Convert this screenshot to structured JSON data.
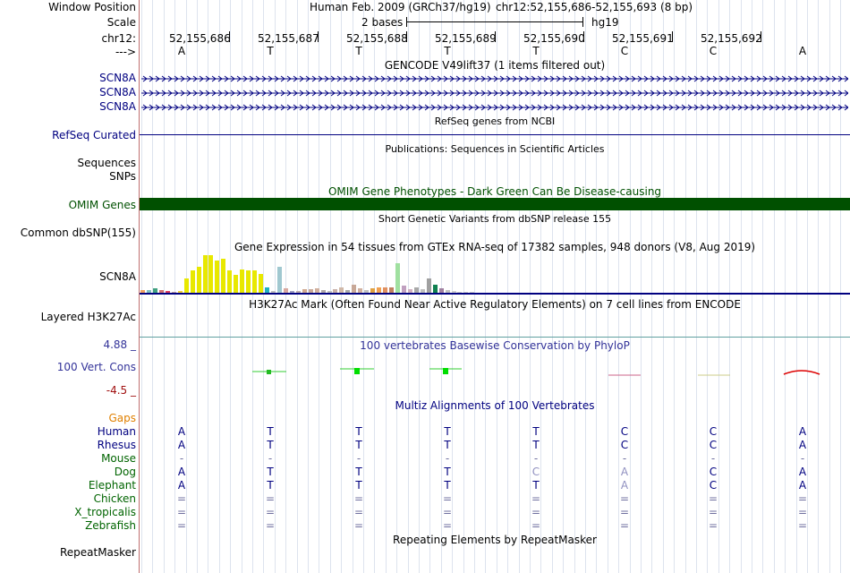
{
  "header": {
    "window_position_label": "Window Position",
    "assembly": "Human Feb. 2009 (GRCh37/hg19)",
    "coordinates": "chr12:52,155,686-52,155,693 (8 bp)",
    "scale_label": "Scale",
    "scale_text": "2 bases",
    "scale_assembly": "hg19",
    "chrom_label": "chr12:",
    "strand_label": "--->",
    "positions": [
      "52,155,686",
      "52,155,687",
      "52,155,688",
      "52,155,689",
      "52,155,690",
      "52,155,691",
      "52,155,692"
    ],
    "bases": [
      "A",
      "T",
      "T",
      "T",
      "T",
      "C",
      "C",
      "A"
    ]
  },
  "tracks": {
    "gencode_title": "GENCODE V49lift37 (1 items filtered out)",
    "gencode_genes": [
      "SCN8A",
      "SCN8A",
      "SCN8A"
    ],
    "refseq_title": "RefSeq genes from NCBI",
    "refseq_label": "RefSeq Curated",
    "publications_title": "Publications: Sequences in Scientific Articles",
    "sequences_label": "Sequences",
    "snps_label": "SNPs",
    "omim_title": "OMIM Gene Phenotypes - Dark Green Can Be Disease-causing",
    "omim_label": "OMIM Genes",
    "dbsnp_title": "Short Genetic Variants from dbSNP release 155",
    "dbsnp_label": "Common dbSNP(155)",
    "gtex_title": "Gene Expression in 54 tissues from GTEx RNA-seq of 17382 samples, 948 donors (V8, Aug 2019)",
    "gtex_label": "SCN8A",
    "h3k27ac_title": "H3K27Ac Mark (Often Found Near Active Regulatory Elements) on 7 cell lines from ENCODE",
    "h3k27ac_label": "Layered H3K27Ac",
    "cons_title": "100 vertebrates Basewise Conservation by PhyloP",
    "cons_label": "100 Vert. Cons",
    "cons_max": "4.88 _",
    "cons_min": "-4.5 _",
    "multiz_title": "Multiz Alignments of 100 Vertebrates",
    "repeat_title": "Repeating Elements by RepeatMasker",
    "repeat_label": "RepeatMasker"
  },
  "colors": {
    "navy": "#000080",
    "omim_green": "#005000",
    "cons_blue": "#333399",
    "cons_red": "#a01010",
    "gaps_orange": "#e08000",
    "species_green": "#006400"
  },
  "gtex_bars": [
    {
      "value": 0.06,
      "color": "#f0a060"
    },
    {
      "value": 0.08,
      "color": "#80c0c0"
    },
    {
      "value": 0.12,
      "color": "#40a080"
    },
    {
      "value": 0.08,
      "color": "#d07070"
    },
    {
      "value": 0.04,
      "color": "#e04060"
    },
    {
      "value": 0.03,
      "color": "#c0a0a0"
    },
    {
      "value": 0.05,
      "color": "#f0d040"
    },
    {
      "value": 0.38,
      "color": "#e8e800"
    },
    {
      "value": 0.58,
      "color": "#e8e800"
    },
    {
      "value": 0.68,
      "color": "#e8e800"
    },
    {
      "value": 0.98,
      "color": "#e8e800"
    },
    {
      "value": 0.98,
      "color": "#e8e800"
    },
    {
      "value": 0.84,
      "color": "#e8e800"
    },
    {
      "value": 0.88,
      "color": "#e8e800"
    },
    {
      "value": 0.58,
      "color": "#e8e800"
    },
    {
      "value": 0.46,
      "color": "#e8e800"
    },
    {
      "value": 0.6,
      "color": "#e8e800"
    },
    {
      "value": 0.58,
      "color": "#e8e800"
    },
    {
      "value": 0.58,
      "color": "#e8e800"
    },
    {
      "value": 0.48,
      "color": "#e8e800"
    },
    {
      "value": 0.14,
      "color": "#20b0c0"
    },
    {
      "value": 0.04,
      "color": "#c0c0c0"
    },
    {
      "value": 0.68,
      "color": "#a0c8d0"
    },
    {
      "value": 0.12,
      "color": "#d8a8a0"
    },
    {
      "value": 0.04,
      "color": "#a0a0c0"
    },
    {
      "value": 0.04,
      "color": "#c0b0b0"
    },
    {
      "value": 0.1,
      "color": "#d0a890"
    },
    {
      "value": 0.1,
      "color": "#c8a898"
    },
    {
      "value": 0.12,
      "color": "#d0b0a0"
    },
    {
      "value": 0.06,
      "color": "#b0a8a8"
    },
    {
      "value": 0.04,
      "color": "#c0c0c0"
    },
    {
      "value": 0.1,
      "color": "#c8b0a8"
    },
    {
      "value": 0.14,
      "color": "#d0b8a8"
    },
    {
      "value": 0.06,
      "color": "#a8a8a8"
    },
    {
      "value": 0.2,
      "color": "#c8a898"
    },
    {
      "value": 0.12,
      "color": "#d0b0a0"
    },
    {
      "value": 0.08,
      "color": "#c0c0c0"
    },
    {
      "value": 0.12,
      "color": "#e0a040"
    },
    {
      "value": 0.14,
      "color": "#f0a050"
    },
    {
      "value": 0.14,
      "color": "#e09060"
    },
    {
      "value": 0.14,
      "color": "#c08060"
    },
    {
      "value": 0.76,
      "color": "#a0e0a0"
    },
    {
      "value": 0.18,
      "color": "#c0a0c0"
    },
    {
      "value": 0.1,
      "color": "#d0b0c0"
    },
    {
      "value": 0.14,
      "color": "#a8a8a8"
    },
    {
      "value": 0.1,
      "color": "#c0c0c0"
    },
    {
      "value": 0.38,
      "color": "#a0a0a0"
    },
    {
      "value": 0.2,
      "color": "#108050"
    },
    {
      "value": 0.12,
      "color": "#a080a0"
    },
    {
      "value": 0.06,
      "color": "#c0c0c0"
    },
    {
      "value": 0.04,
      "color": "#d0d0d0"
    },
    {
      "value": 0.03,
      "color": "#d0d0d0"
    },
    {
      "value": 0.02,
      "color": "#d0d0d0"
    },
    {
      "value": 0.02,
      "color": "#d0d0d0"
    }
  ],
  "multiz": {
    "gaps_label": "Gaps",
    "species": [
      {
        "name": "Human",
        "bases": [
          "A",
          "T",
          "T",
          "T",
          "T",
          "C",
          "C",
          "A"
        ]
      },
      {
        "name": "Rhesus",
        "bases": [
          "A",
          "T",
          "T",
          "T",
          "T",
          "C",
          "C",
          "A"
        ]
      },
      {
        "name": "Mouse",
        "bases": [
          "-",
          "-",
          "-",
          "-",
          "-",
          "-",
          "-",
          "-"
        ]
      },
      {
        "name": "Dog",
        "bases": [
          "A",
          "T",
          "T",
          "T",
          "C",
          "A",
          "C",
          "A"
        ]
      },
      {
        "name": "Elephant",
        "bases": [
          "A",
          "T",
          "T",
          "T",
          "T",
          "A",
          "C",
          "A"
        ]
      },
      {
        "name": "Chicken",
        "bases": [
          "=",
          "=",
          "=",
          "=",
          "=",
          "=",
          "=",
          "="
        ]
      },
      {
        "name": "X_tropicalis",
        "bases": [
          "=",
          "=",
          "=",
          "=",
          "=",
          "=",
          "=",
          "="
        ]
      },
      {
        "name": "Zebrafish",
        "bases": [
          "=",
          "=",
          "=",
          "=",
          "=",
          "=",
          "=",
          "="
        ]
      }
    ]
  }
}
